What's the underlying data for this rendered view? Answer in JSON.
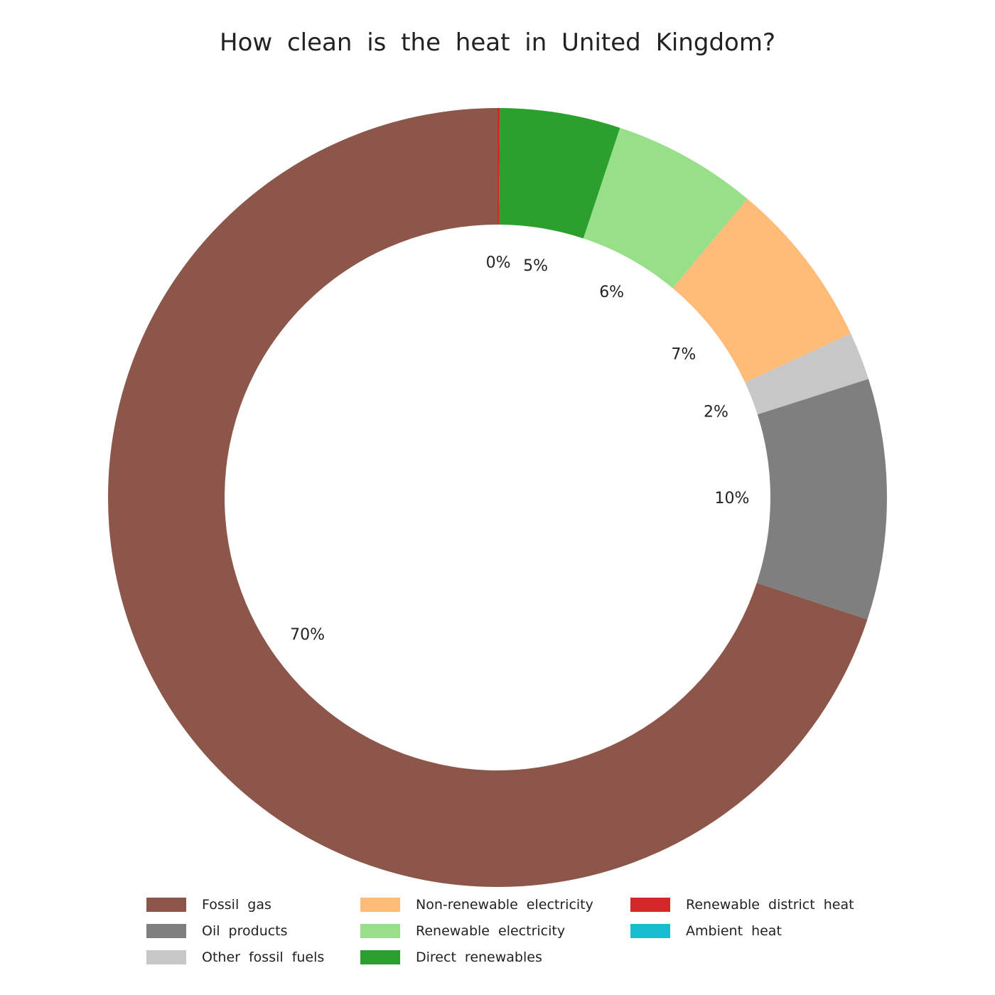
{
  "chart_data": {
    "type": "pie",
    "donut": true,
    "title": "How clean is the heat in United Kingdom?",
    "start": "top",
    "direction": "clockwise",
    "slices": [
      {
        "name": "Renewable district heat",
        "value": 0.1,
        "label": "0%",
        "color": "#d62728"
      },
      {
        "name": "Direct renewables",
        "value": 5,
        "label": "5%",
        "color": "#2ca02c"
      },
      {
        "name": "Renewable electricity",
        "value": 6,
        "label": "6%",
        "color": "#98df8a"
      },
      {
        "name": "Non-renewable electricity",
        "value": 7,
        "label": "7%",
        "color": "#ffbb78"
      },
      {
        "name": "Other fossil fuels",
        "value": 2,
        "label": "2%",
        "color": "#c7c7c7"
      },
      {
        "name": "Oil products",
        "value": 10,
        "label": "10%",
        "color": "#7f7f7f"
      },
      {
        "name": "Fossil gas",
        "value": 70,
        "label": "70%",
        "color": "#8c564b"
      }
    ],
    "legend": [
      {
        "name": "Fossil gas",
        "color": "#8c564b"
      },
      {
        "name": "Oil products",
        "color": "#7f7f7f"
      },
      {
        "name": "Other fossil fuels",
        "color": "#c7c7c7"
      },
      {
        "name": "Non-renewable electricity",
        "color": "#ffbb78"
      },
      {
        "name": "Renewable electricity",
        "color": "#98df8a"
      },
      {
        "name": "Direct renewables",
        "color": "#2ca02c"
      },
      {
        "name": "Renewable district heat",
        "color": "#d62728"
      },
      {
        "name": "Ambient heat",
        "color": "#17becf"
      }
    ],
    "legend_position": "bottom"
  }
}
